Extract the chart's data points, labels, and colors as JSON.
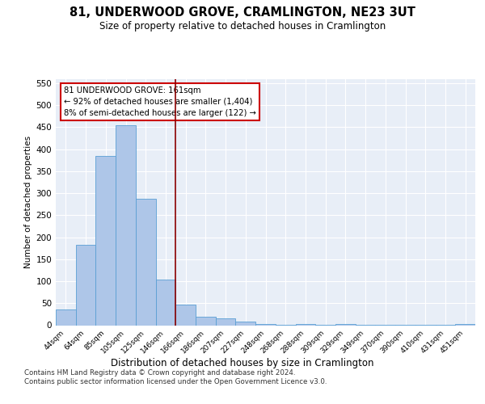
{
  "title": "81, UNDERWOOD GROVE, CRAMLINGTON, NE23 3UT",
  "subtitle": "Size of property relative to detached houses in Cramlington",
  "xlabel": "Distribution of detached houses by size in Cramlington",
  "ylabel": "Number of detached properties",
  "categories": [
    "44sqm",
    "64sqm",
    "85sqm",
    "105sqm",
    "125sqm",
    "146sqm",
    "166sqm",
    "186sqm",
    "207sqm",
    "227sqm",
    "248sqm",
    "268sqm",
    "288sqm",
    "309sqm",
    "329sqm",
    "349sqm",
    "370sqm",
    "390sqm",
    "410sqm",
    "431sqm",
    "451sqm"
  ],
  "values": [
    35,
    183,
    385,
    455,
    287,
    103,
    47,
    20,
    15,
    9,
    3,
    1,
    3,
    1,
    3,
    1,
    1,
    1,
    1,
    1,
    3
  ],
  "bar_color": "#aec6e8",
  "bar_edge_color": "#5a9fd4",
  "vline_x": 5.5,
  "vline_color": "#8b0000",
  "annotation_line1": "81 UNDERWOOD GROVE: 161sqm",
  "annotation_line2": "← 92% of detached houses are smaller (1,404)",
  "annotation_line3": "8% of semi-detached houses are larger (122) →",
  "annotation_box_color": "#ffffff",
  "annotation_box_edge": "#cc0000",
  "ylim": [
    0,
    560
  ],
  "yticks": [
    0,
    50,
    100,
    150,
    200,
    250,
    300,
    350,
    400,
    450,
    500,
    550
  ],
  "footer": "Contains HM Land Registry data © Crown copyright and database right 2024.\nContains public sector information licensed under the Open Government Licence v3.0.",
  "background_color": "#ffffff",
  "plot_bg_color": "#e8eef7"
}
